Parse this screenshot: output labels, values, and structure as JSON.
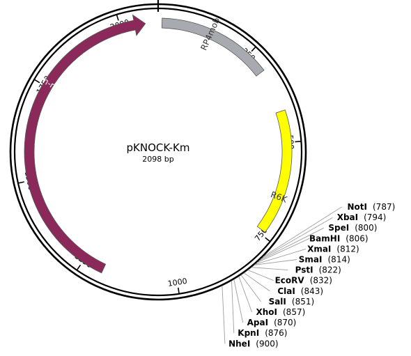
{
  "plasmid": {
    "name": "pKNOCK-Km",
    "size_label": "2098 bp",
    "length": 2098
  },
  "ticks": [
    {
      "pos": 250,
      "label": "250"
    },
    {
      "pos": 500,
      "label": "500"
    },
    {
      "pos": 750,
      "label": "750"
    },
    {
      "pos": 1000,
      "label": "1000"
    },
    {
      "pos": 1250,
      "label": "1250"
    },
    {
      "pos": 1500,
      "label": "1500"
    },
    {
      "pos": 1750,
      "label": "1750"
    },
    {
      "pos": 2000,
      "label": "2000"
    }
  ],
  "features": [
    {
      "name": "RP4mob",
      "start": 10,
      "end": 305,
      "color": "#a7abb0",
      "label_color": "#333333",
      "arrow": "none"
    },
    {
      "name": "R6K",
      "start": 418,
      "end": 740,
      "color": "#ffff00",
      "label_color": "#333333",
      "arrow": "none"
    },
    {
      "name": "Km-res",
      "start": 1195,
      "end": 2065,
      "color": "#8b2a5a",
      "label_color": "#ffffff",
      "arrow": "end"
    }
  ],
  "sites": [
    {
      "name": "NotI",
      "pos_label": "(787)",
      "pos": 787
    },
    {
      "name": "XbaI",
      "pos_label": "(794)",
      "pos": 794
    },
    {
      "name": "SpeI",
      "pos_label": "(800)",
      "pos": 800
    },
    {
      "name": "BamHI",
      "pos_label": "(806)",
      "pos": 806
    },
    {
      "name": "XmaI",
      "pos_label": "(812)",
      "pos": 812
    },
    {
      "name": "SmaI",
      "pos_label": "(814)",
      "pos": 814
    },
    {
      "name": "PstI",
      "pos_label": "(822)",
      "pos": 822
    },
    {
      "name": "EcoRV",
      "pos_label": "(832)",
      "pos": 832
    },
    {
      "name": "ClaI",
      "pos_label": "(843)",
      "pos": 843
    },
    {
      "name": "SalI",
      "pos_label": "(851)",
      "pos": 851
    },
    {
      "name": "XhoI",
      "pos_label": "(857)",
      "pos": 857
    },
    {
      "name": "ApaI",
      "pos_label": "(870)",
      "pos": 870
    },
    {
      "name": "KpnI",
      "pos_label": "(876)",
      "pos": 876
    },
    {
      "name": "NheI",
      "pos_label": "(900)",
      "pos": 900
    }
  ]
}
